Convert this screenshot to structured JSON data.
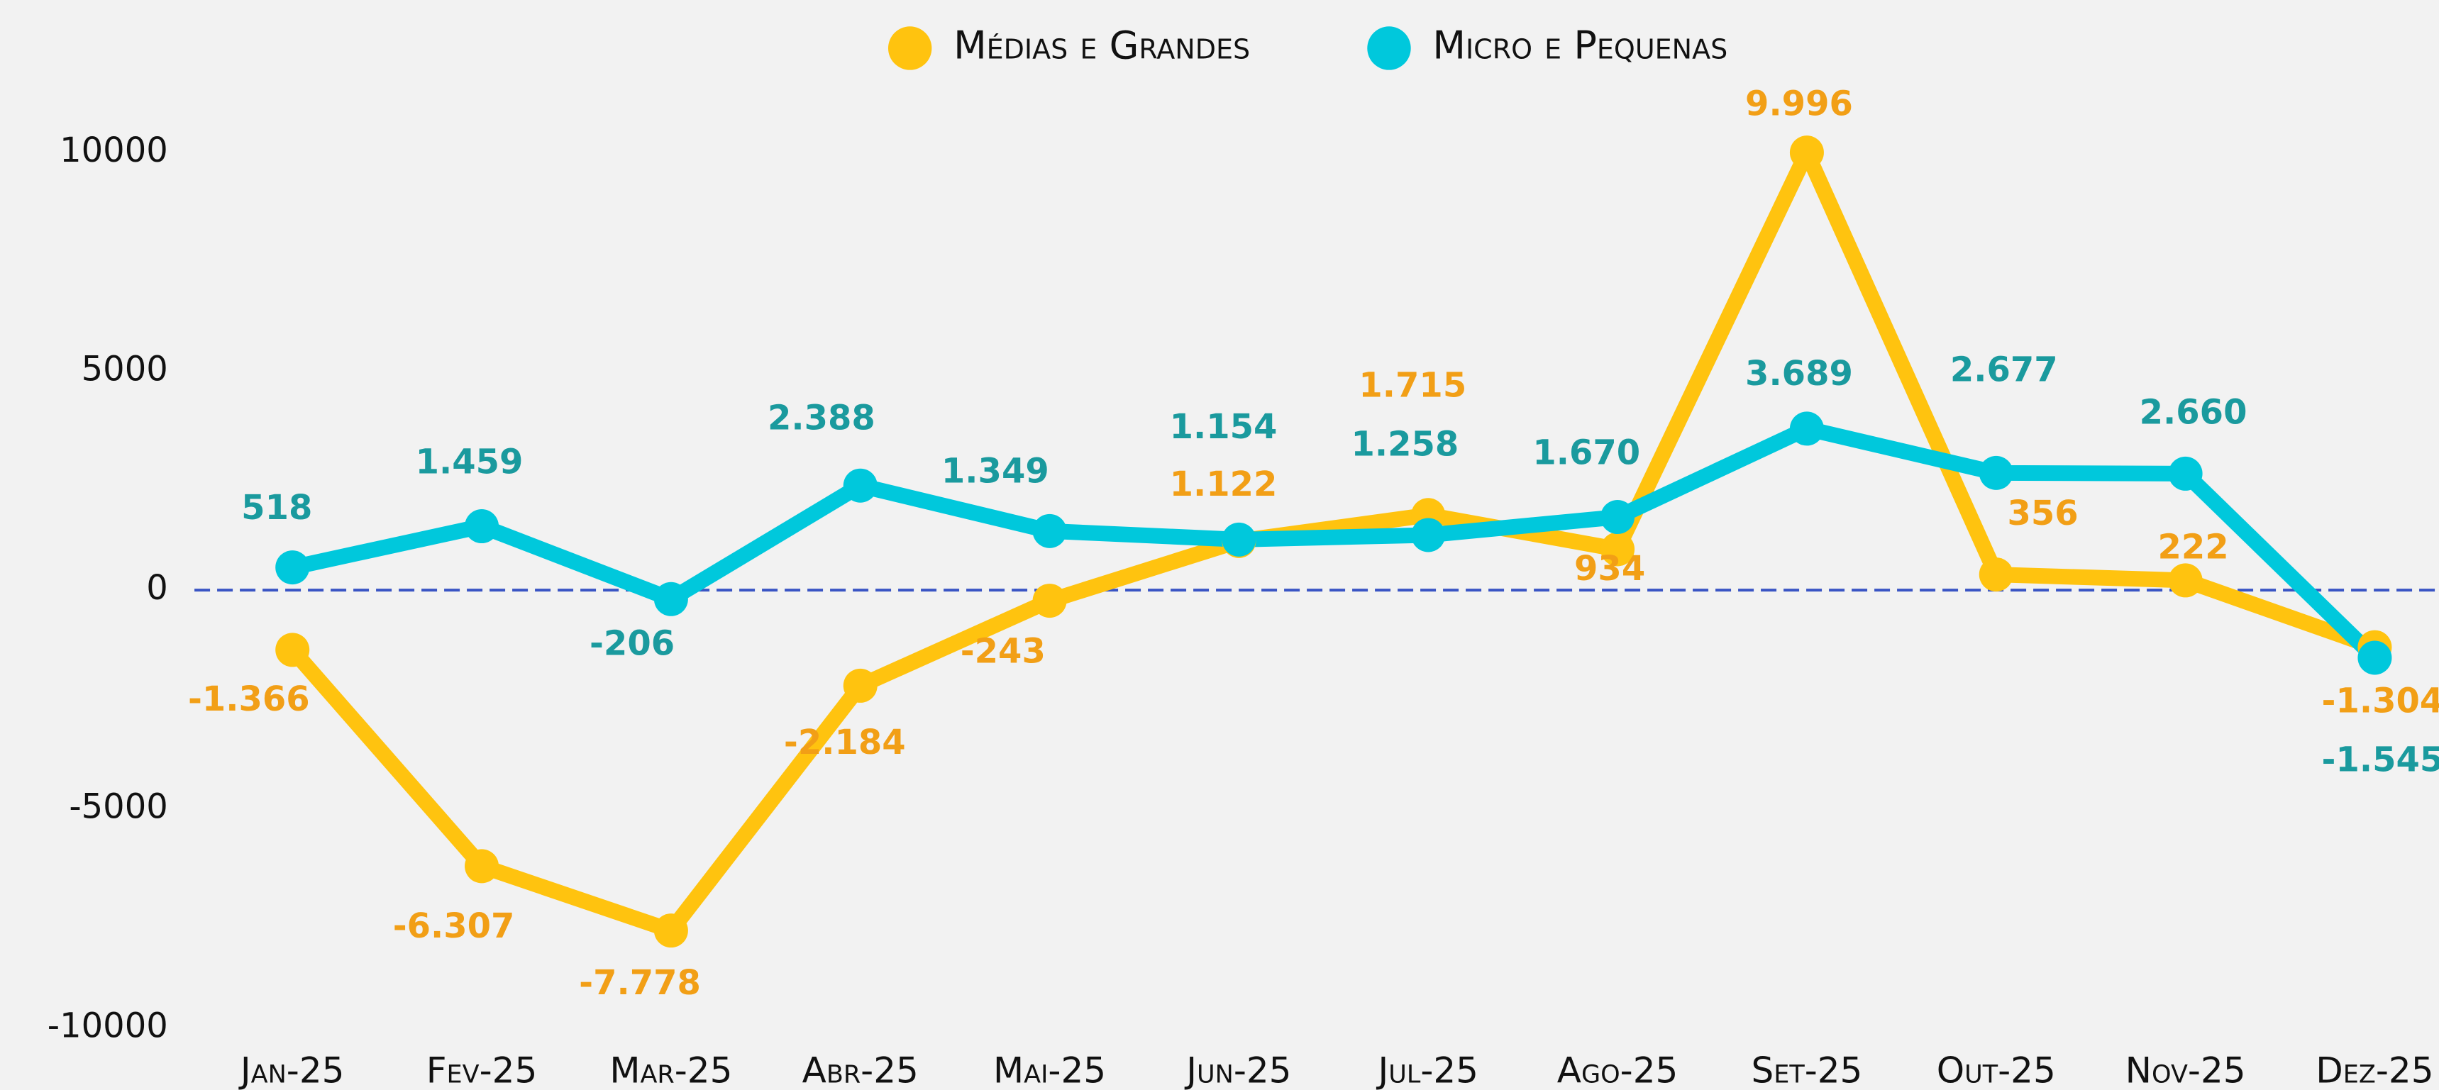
{
  "chart_data": {
    "type": "line",
    "categories": [
      "Jan-25",
      "Fev-25",
      "Mar-25",
      "Abr-25",
      "Mai-25",
      "Jun-25",
      "Jul-25",
      "Ago-25",
      "Set-25",
      "Out-25",
      "Nov-25",
      "Dez-25"
    ],
    "series": [
      {
        "name": "Médias e Grandes",
        "color": "#ffc30f",
        "label_color": "#f29f16",
        "values": [
          -1366,
          -6307,
          -7778,
          -2184,
          -243,
          1122,
          1715,
          934,
          9996,
          356,
          222,
          -1304
        ],
        "value_labels": [
          "-1.366",
          "-6.307",
          "-7.778",
          "-2.184",
          "-243",
          "1.122",
          "1.715",
          "934",
          "9.996",
          "356",
          "222",
          "-1.304"
        ]
      },
      {
        "name": "Micro e Pequenas",
        "color": "#00c8dc",
        "label_color": "#1a9a9e",
        "values": [
          518,
          1459,
          -206,
          2388,
          1349,
          1154,
          1258,
          1670,
          3689,
          2677,
          2660,
          -1545
        ],
        "value_labels": [
          "518",
          "1.459",
          "-206",
          "2.388",
          "1.349",
          "1.154",
          "1.258",
          "1.670",
          "3.689",
          "2.677",
          "2.660",
          "-1.545"
        ]
      }
    ],
    "ylim": [
      -10000,
      10000
    ],
    "yticks": [
      -10000,
      -5000,
      0,
      5000,
      10000
    ],
    "reference_line": 0,
    "reference_color": "#3a55c4",
    "legend": "top",
    "grid": false
  }
}
